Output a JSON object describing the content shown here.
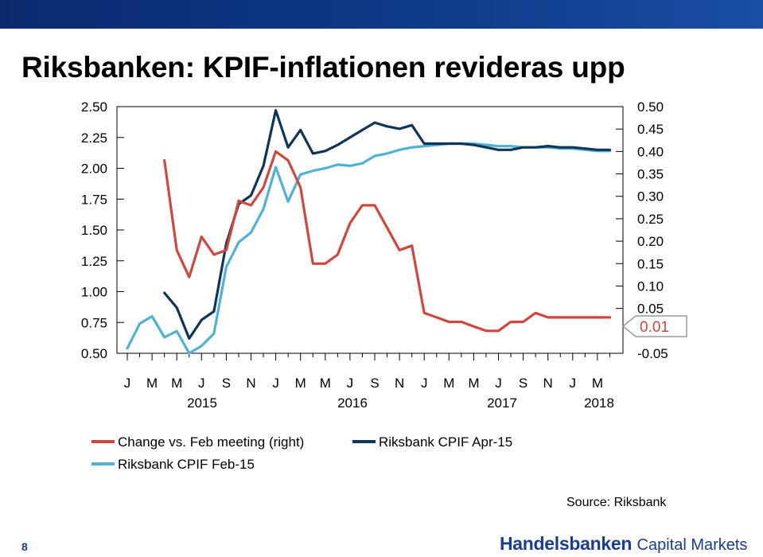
{
  "slide": {
    "title": "Riksbanken: KPIF-inflationen revideras upp",
    "source": "Source: Riksbank",
    "page_number": "8",
    "brand_bold": "Handelsbanken",
    "brand_regular": "Capital Markets",
    "band_color": "#0b2a6e"
  },
  "chart_data": {
    "type": "line",
    "title": "",
    "x_month_labels": [
      "J",
      "M",
      "M",
      "J",
      "S",
      "N",
      "J",
      "M",
      "M",
      "J",
      "S",
      "N",
      "J",
      "M",
      "M",
      "J",
      "S",
      "N",
      "J",
      "M"
    ],
    "x_year_labels": [
      "2015",
      "2016",
      "2017",
      "2018"
    ],
    "left_axis": {
      "ylim": [
        0.5,
        2.5
      ],
      "ticks": [
        "2.50",
        "2.25",
        "2.00",
        "1.75",
        "1.50",
        "1.25",
        "1.00",
        "0.75",
        "0.50"
      ]
    },
    "right_axis": {
      "ylim": [
        -0.05,
        0.5
      ],
      "ticks": [
        "0.50",
        "0.45",
        "0.40",
        "0.35",
        "0.30",
        "0.25",
        "0.20",
        "0.15",
        "0.10",
        "0.05",
        "-0.05"
      ]
    },
    "callout": {
      "value": "0.01",
      "color": "#d0473d"
    },
    "grid": false,
    "series": [
      {
        "name": "Riksbank CPIF Feb-15",
        "axis": "left",
        "color": "#4fb2d6",
        "x": [
          1,
          2,
          3,
          4,
          5,
          6,
          7,
          8,
          9,
          10,
          11,
          12,
          13,
          14,
          15,
          16,
          17,
          18,
          19,
          20,
          21,
          22,
          23,
          24,
          25,
          26,
          27,
          28,
          29,
          30,
          31,
          32,
          33,
          34,
          35,
          36,
          37,
          38,
          39,
          40
        ],
        "y": [
          0.54,
          0.74,
          0.8,
          0.63,
          0.68,
          0.5,
          0.56,
          0.66,
          1.2,
          1.4,
          1.48,
          1.67,
          2.01,
          1.73,
          1.95,
          1.98,
          2.0,
          2.03,
          2.02,
          2.04,
          2.1,
          2.12,
          2.15,
          2.17,
          2.18,
          2.19,
          2.2,
          2.2,
          2.2,
          2.19,
          2.18,
          2.18,
          2.17,
          2.17,
          2.17,
          2.16,
          2.16,
          2.15,
          2.14,
          2.14
        ]
      },
      {
        "name": "Riksbank CPIF Apr-15",
        "axis": "left",
        "color": "#0f3658",
        "x": [
          4,
          5,
          6,
          7,
          8,
          9,
          10,
          11,
          12,
          13,
          14,
          15,
          16,
          17,
          18,
          19,
          20,
          21,
          22,
          23,
          24,
          25,
          26,
          27,
          28,
          29,
          30,
          31,
          32,
          33,
          34,
          35,
          36,
          37,
          38,
          39,
          40
        ],
        "y": [
          0.99,
          0.87,
          0.62,
          0.77,
          0.84,
          1.39,
          1.71,
          1.78,
          2.02,
          2.47,
          2.17,
          2.31,
          2.12,
          2.14,
          2.19,
          2.25,
          2.31,
          2.37,
          2.34,
          2.32,
          2.35,
          2.2,
          2.2,
          2.2,
          2.2,
          2.19,
          2.17,
          2.15,
          2.15,
          2.17,
          2.17,
          2.18,
          2.17,
          2.17,
          2.16,
          2.15,
          2.15
        ]
      },
      {
        "name": "Change vs. Feb meeting (right)",
        "axis": "right",
        "color": "#d0473d",
        "x": [
          4,
          5,
          6,
          7,
          8,
          9,
          10,
          11,
          12,
          13,
          14,
          15,
          16,
          17,
          18,
          19,
          20,
          21,
          22,
          23,
          24,
          25,
          26,
          27,
          28,
          29,
          30,
          31,
          32,
          33,
          34,
          35,
          36,
          37,
          38,
          39,
          40
        ],
        "y": [
          0.38,
          0.18,
          0.12,
          0.21,
          0.17,
          0.18,
          0.29,
          0.28,
          0.32,
          0.4,
          0.38,
          0.32,
          0.15,
          0.15,
          0.17,
          0.24,
          0.28,
          0.28,
          0.23,
          0.18,
          0.19,
          0.04,
          0.03,
          0.02,
          0.02,
          0.01,
          0.0,
          0.0,
          0.02,
          0.02,
          0.04,
          0.03,
          0.03,
          0.03,
          0.03,
          0.03,
          0.03
        ]
      }
    ],
    "legend": {
      "placement": "bottom-left"
    }
  }
}
